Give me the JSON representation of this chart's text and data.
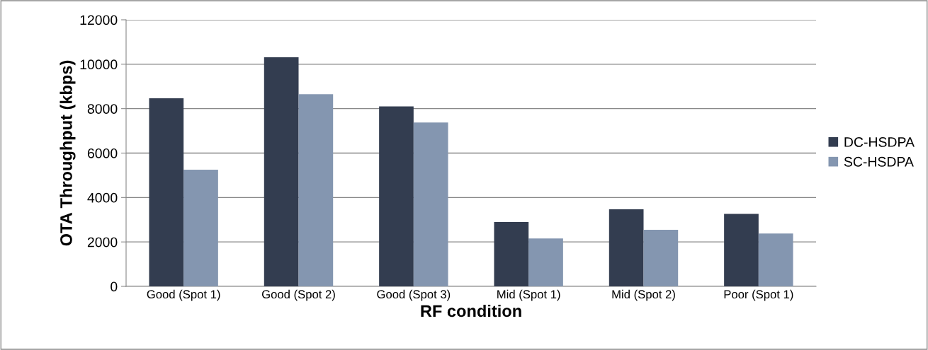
{
  "chart_data": {
    "type": "bar",
    "xlabel": "RF condition",
    "ylabel": "OTA Throughput (kbps)",
    "categories": [
      "Good (Spot 1)",
      "Good (Spot 2)",
      "Good (Spot 3)",
      "Mid (Spot 1)",
      "Mid (Spot 2)",
      "Poor (Spot 1)"
    ],
    "series": [
      {
        "name": "DC-HSDPA",
        "color": "#333d50",
        "values": [
          8470,
          10310,
          8100,
          2900,
          3470,
          3260
        ]
      },
      {
        "name": "SC-HSDPA",
        "color": "#8496b0",
        "values": [
          5250,
          8650,
          7380,
          2160,
          2550,
          2380
        ]
      }
    ],
    "ylim": [
      0,
      12000
    ],
    "yticks": [
      0,
      2000,
      4000,
      6000,
      8000,
      10000,
      12000
    ],
    "grid": "y",
    "legend": "right"
  }
}
